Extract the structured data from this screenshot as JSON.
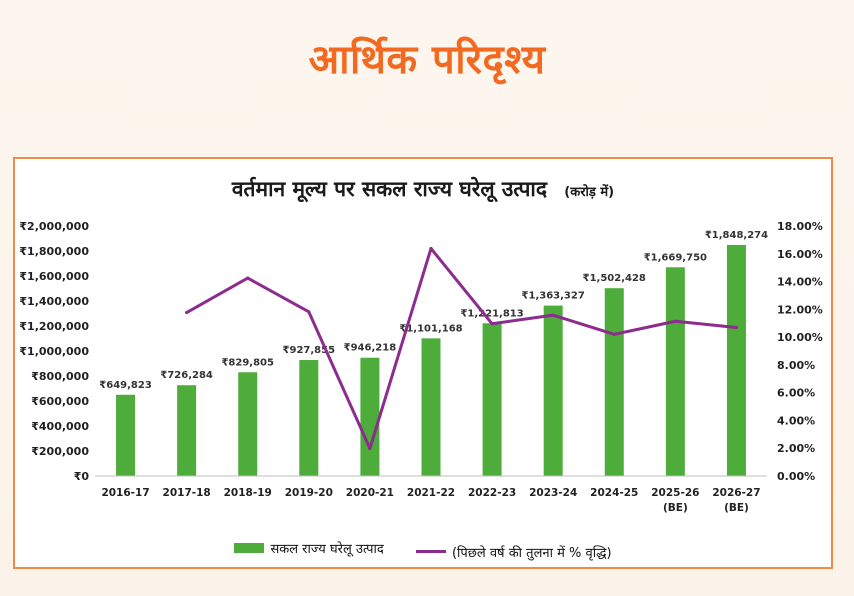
{
  "header": {
    "title": "आर्थिक परिदृश्य"
  },
  "chart_data": {
    "type": "bar",
    "title": "वर्तमान मूल्य पर सकल राज्य घरेलू उत्पाद",
    "unit_note": "(करोड़ में)",
    "categories": [
      "2016-17",
      "2017-18",
      "2018-19",
      "2019-20",
      "2020-21",
      "2021-22",
      "2022-23",
      "2023-24",
      "2024-25",
      "2025-26 (BE)",
      "2026-27 (BE)"
    ],
    "category_lines": [
      [
        "2016-17"
      ],
      [
        "2017-18"
      ],
      [
        "2018-19"
      ],
      [
        "2019-20"
      ],
      [
        "2020-21"
      ],
      [
        "2021-22"
      ],
      [
        "2022-23"
      ],
      [
        "2023-24"
      ],
      [
        "2024-25"
      ],
      [
        "2025-26",
        "(BE)"
      ],
      [
        "2026-27",
        "(BE)"
      ]
    ],
    "series": [
      {
        "name": "सकल राज्य घरेलू उत्पाद",
        "type": "bar",
        "axis": "left",
        "color": "#4eac3b",
        "values": [
          649823,
          726284,
          829805,
          927855,
          946218,
          1101168,
          1221813,
          1363327,
          1502428,
          1669750,
          1848274
        ],
        "labels": [
          "₹649,823",
          "₹726,284",
          "₹829,805",
          "₹927,855",
          "₹946,218",
          "₹1,101,168",
          "₹1,221,813",
          "₹1,363,327",
          "₹1,502,428",
          "₹1,669,750",
          "₹1,848,274"
        ]
      },
      {
        "name": "(पिछले वर्ष की तुलना में % वृद्धि)",
        "type": "line",
        "axis": "right",
        "color": "#8b2c8e",
        "values": [
          null,
          11.77,
          14.25,
          11.82,
          1.98,
          16.38,
          10.96,
          11.58,
          10.2,
          11.14,
          10.69
        ]
      }
    ],
    "y_left": {
      "ylim": [
        0,
        2000000
      ],
      "ticks": [
        "₹0",
        "₹200,000",
        "₹400,000",
        "₹600,000",
        "₹800,000",
        "₹1,000,000",
        "₹1,200,000",
        "₹1,400,000",
        "₹1,600,000",
        "₹1,800,000",
        "₹2,000,000"
      ]
    },
    "y_right": {
      "ylim": [
        0,
        18
      ],
      "ticks": [
        "0.00%",
        "2.00%",
        "4.00%",
        "6.00%",
        "8.00%",
        "10.00%",
        "12.00%",
        "14.00%",
        "16.00%",
        "18.00%"
      ]
    },
    "grid": false,
    "legend": {
      "position": "bottom-center",
      "items": [
        "सकल राज्य घरेलू उत्पाद",
        "(पिछले वर्ष की तुलना में % वृद्धि)"
      ]
    }
  }
}
